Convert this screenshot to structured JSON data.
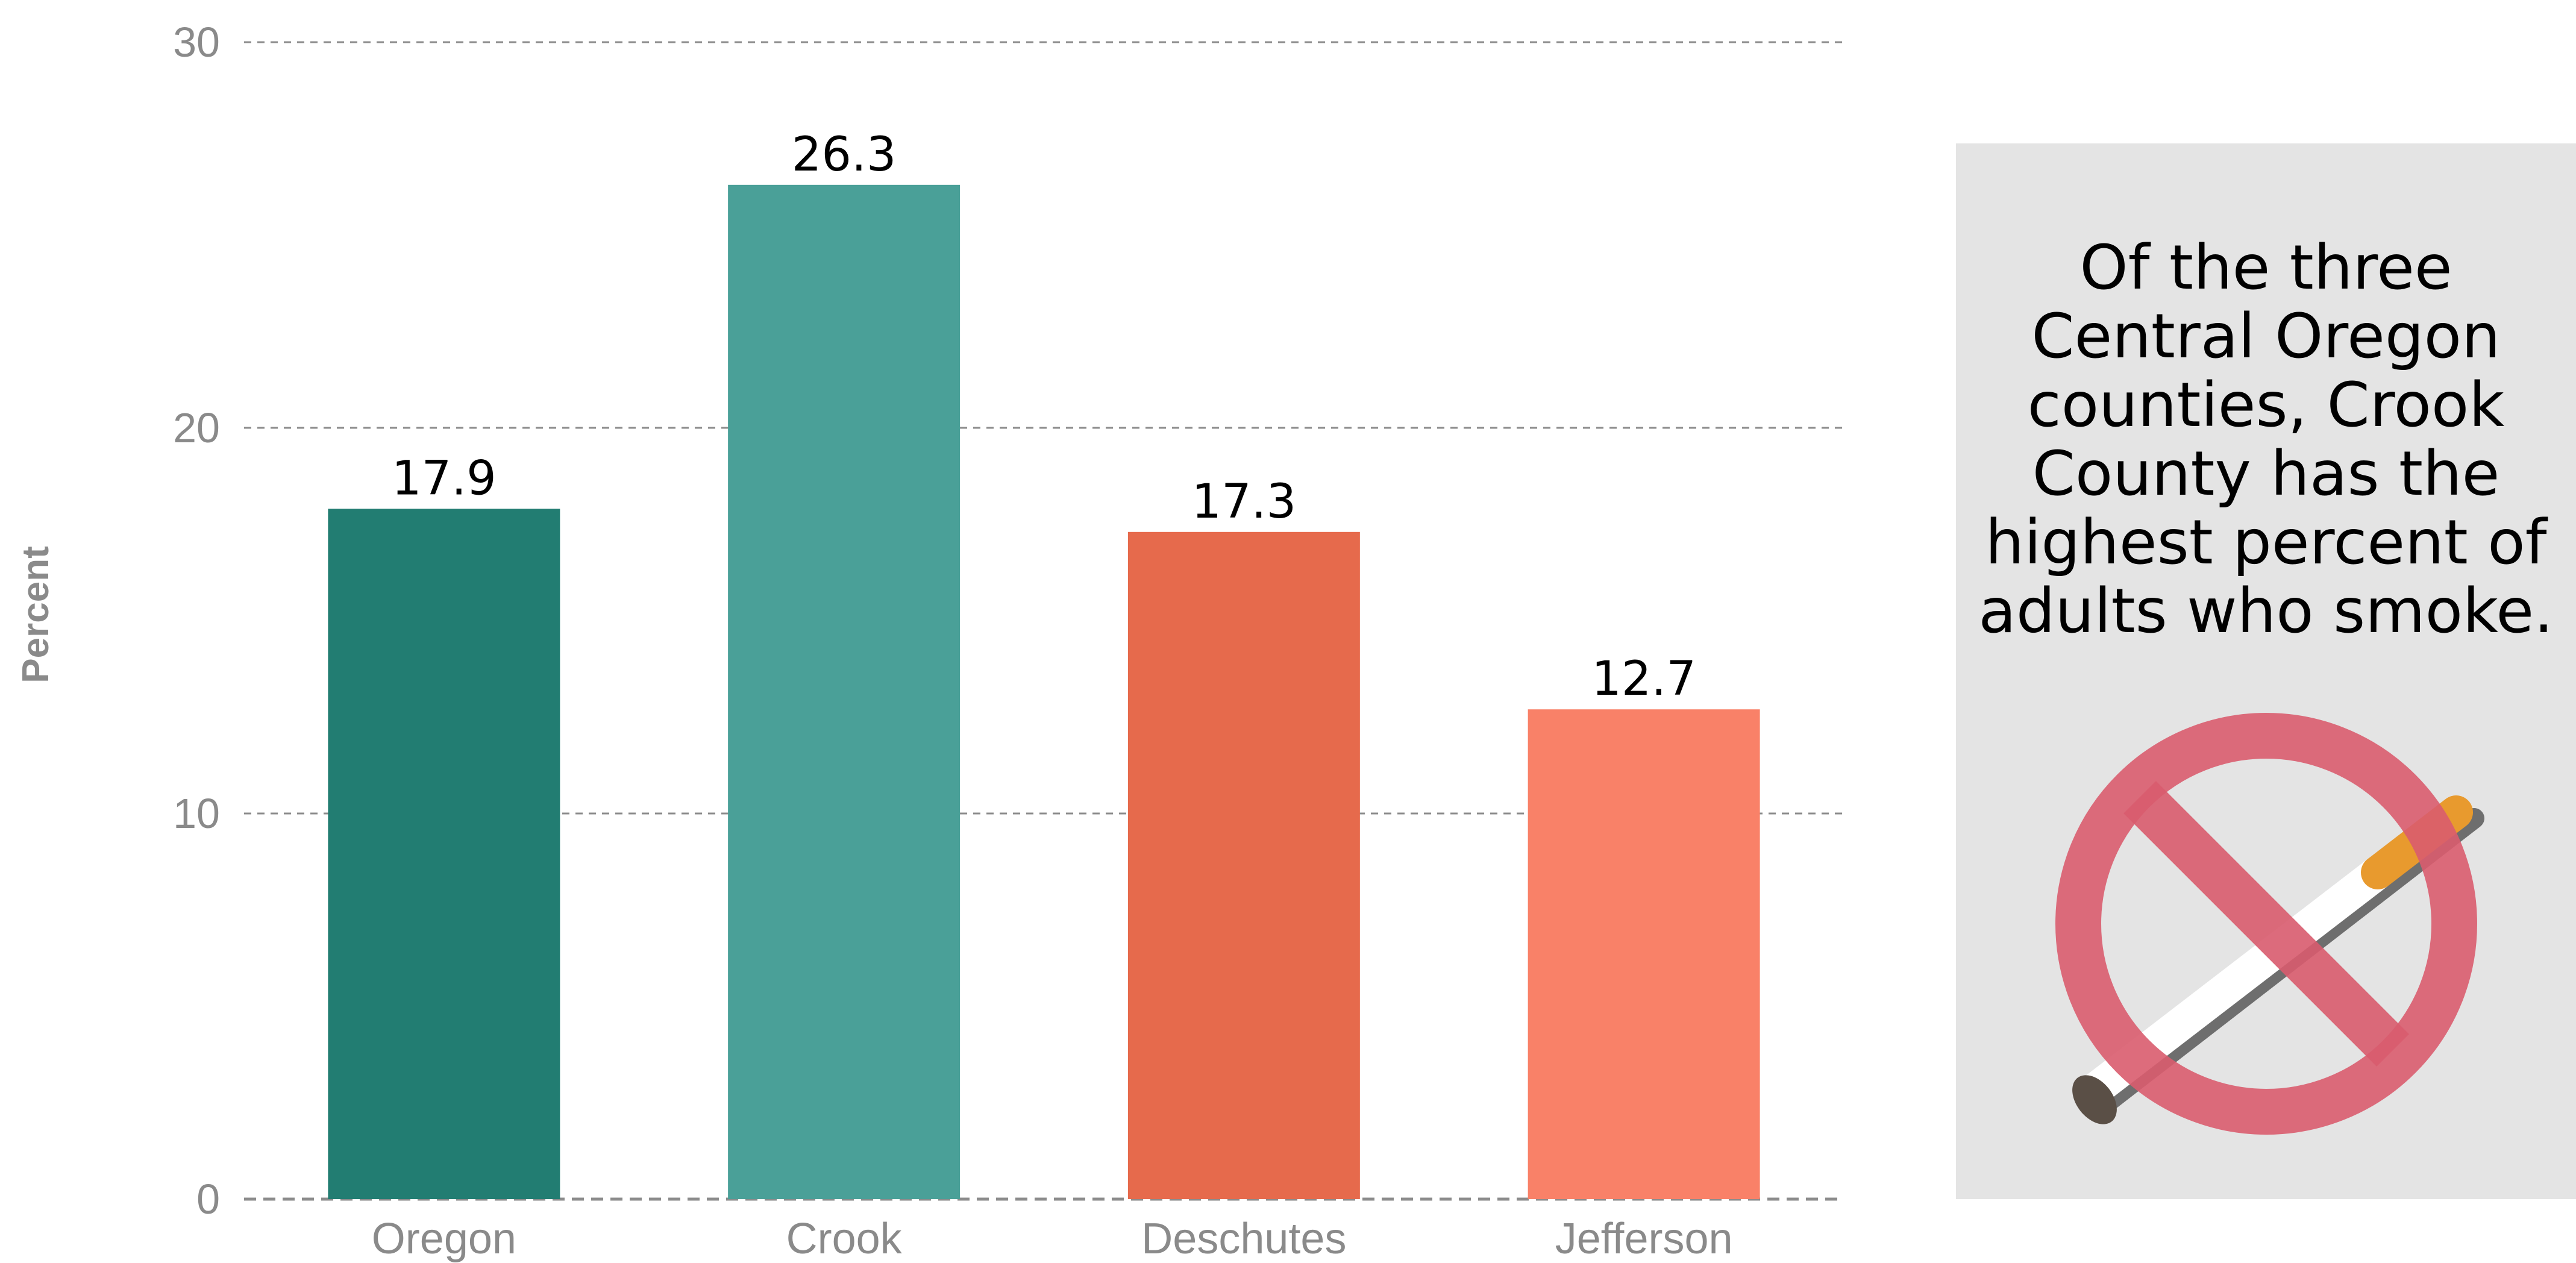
{
  "chart_data": {
    "type": "bar",
    "title": "",
    "xlabel": "",
    "ylabel": "Percent",
    "categories": [
      "Oregon",
      "Crook",
      "Deschutes",
      "Jefferson"
    ],
    "values": [
      17.9,
      26.3,
      17.3,
      12.7
    ],
    "data_labels": [
      "17.9",
      "26.3",
      "17.3",
      "12.7"
    ],
    "bar_colors": [
      "#227d72",
      "#4aa098",
      "#e66a4c",
      "#f98168"
    ],
    "ylim": [
      0,
      30
    ],
    "yticks": [
      0,
      10,
      20,
      30
    ],
    "ytick_labels": [
      "0",
      "10",
      "20",
      "30"
    ],
    "grid": true,
    "legend": "none"
  },
  "info_panel": {
    "text": "Of the three\nCentral Oregon\ncounties, Crook\nCounty has the\nhighest percent of\nadults who smoke.",
    "icon": "no-smoking-icon",
    "colors": {
      "background": "#e4e4e4",
      "prohibition": "#d95c6e",
      "cigarette_filter": "#e89a2e",
      "cigarette_body": "#ffffff",
      "cigarette_shadow": "#6e6e6e",
      "ash": "#5a4f46"
    }
  }
}
